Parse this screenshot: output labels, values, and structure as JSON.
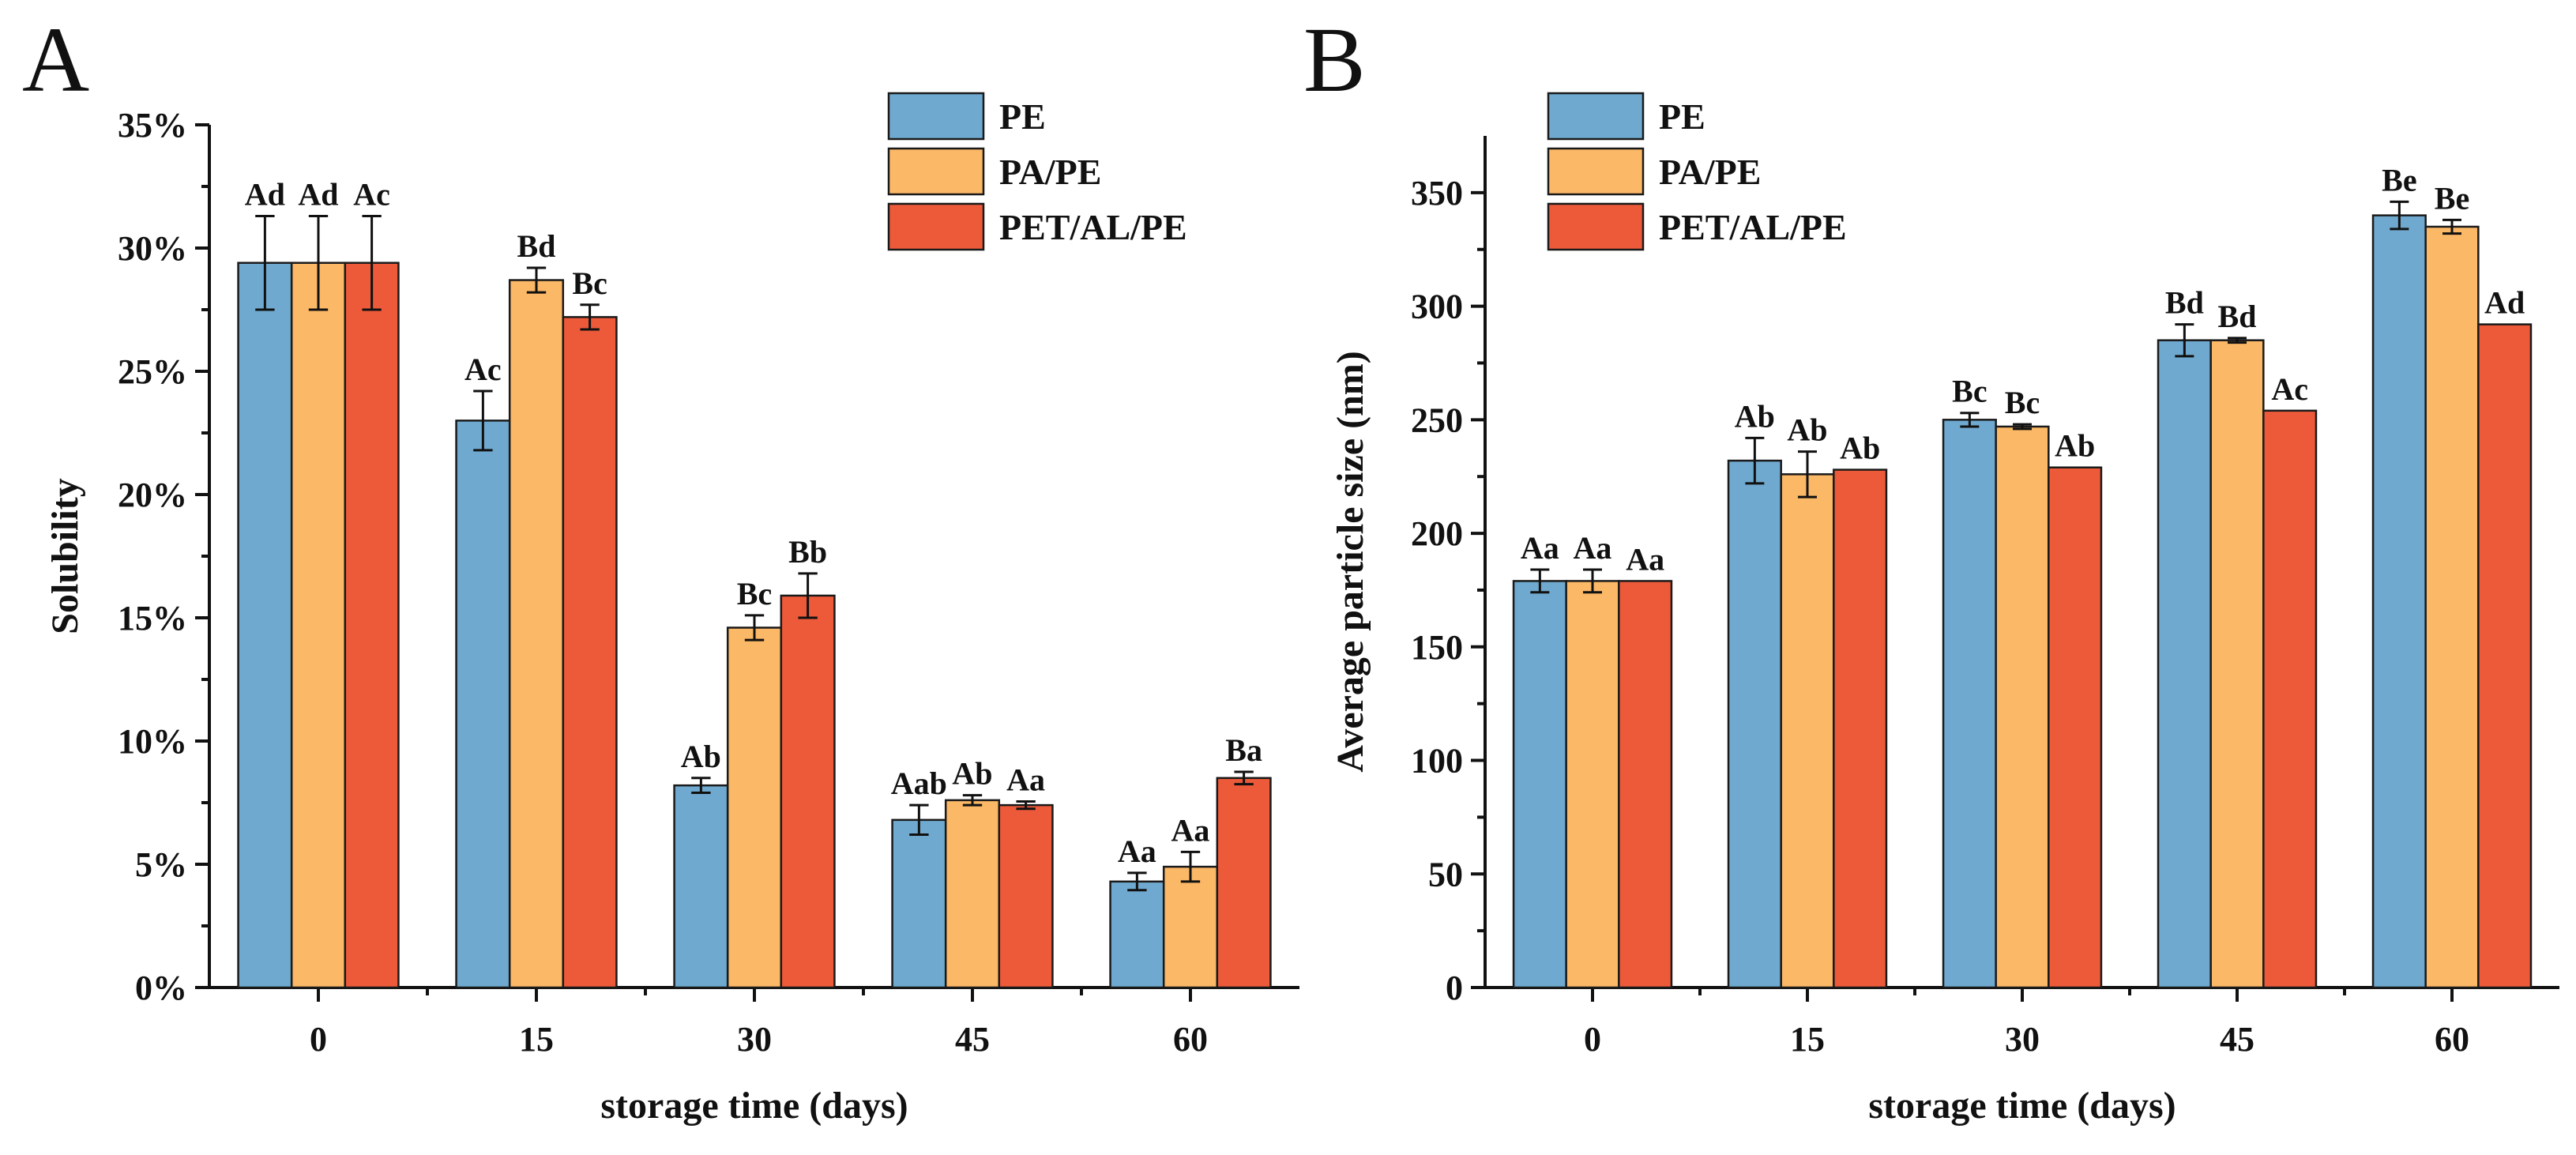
{
  "chart_data": [
    {
      "panel": "A",
      "type": "bar",
      "categories": [
        "0",
        "15",
        "30",
        "45",
        "60"
      ],
      "xlabel": "storage time (days)",
      "ylabel": "Solubility",
      "ylim": [
        0,
        35
      ],
      "yticks": [
        {
          "value": 0,
          "label": "0%"
        },
        {
          "value": 5,
          "label": "5%"
        },
        {
          "value": 10,
          "label": "10%"
        },
        {
          "value": 15,
          "label": "15%"
        },
        {
          "value": 20,
          "label": "20%"
        },
        {
          "value": 25,
          "label": "25%"
        },
        {
          "value": 30,
          "label": "30%"
        },
        {
          "value": 35,
          "label": "35%"
        }
      ],
      "legend_position": "top-right",
      "series": [
        {
          "name": "PE",
          "color": "#6fa9cf",
          "values": [
            29.4,
            23.0,
            8.2,
            6.8,
            4.3
          ],
          "errors": [
            1.9,
            1.2,
            0.3,
            0.6,
            0.35
          ],
          "labels": [
            "Ad",
            "Ac",
            "Ab",
            "Aab",
            "Aa"
          ]
        },
        {
          "name": "PA/PE",
          "color": "#fbb866",
          "values": [
            29.4,
            28.7,
            14.6,
            7.6,
            4.9
          ],
          "errors": [
            1.9,
            0.5,
            0.5,
            0.2,
            0.6
          ],
          "labels": [
            "Ad",
            "Bd",
            "Bc",
            "Ab",
            "Aa"
          ]
        },
        {
          "name": "PET/AL/PE",
          "color": "#ed5a3a",
          "values": [
            29.4,
            27.2,
            15.9,
            7.4,
            8.5
          ],
          "errors": [
            1.9,
            0.5,
            0.9,
            0.15,
            0.25
          ],
          "labels": [
            "Ac",
            "Bc",
            "Bb",
            "Aa",
            "Ba"
          ]
        }
      ]
    },
    {
      "panel": "B",
      "type": "bar",
      "categories": [
        "0",
        "15",
        "30",
        "45",
        "60"
      ],
      "xlabel": "storage time (days)",
      "ylabel": "Average particle size (nm)",
      "ylim": [
        0,
        375
      ],
      "yticks": [
        {
          "value": 0,
          "label": "0"
        },
        {
          "value": 50,
          "label": "50"
        },
        {
          "value": 100,
          "label": "100"
        },
        {
          "value": 150,
          "label": "150"
        },
        {
          "value": 200,
          "label": "200"
        },
        {
          "value": 250,
          "label": "250"
        },
        {
          "value": 300,
          "label": "300"
        },
        {
          "value": 350,
          "label": "350"
        }
      ],
      "legend_position": "top-left",
      "series": [
        {
          "name": "PE",
          "color": "#6fa9cf",
          "values": [
            179,
            232,
            250,
            285,
            340
          ],
          "errors": [
            5,
            10,
            3,
            7,
            6
          ],
          "labels": [
            "Aa",
            "Ab",
            "Bc",
            "Bd",
            "Be"
          ]
        },
        {
          "name": "PA/PE",
          "color": "#fbb866",
          "values": [
            179,
            226,
            247,
            285,
            335
          ],
          "errors": [
            5,
            10,
            1,
            1,
            3
          ],
          "labels": [
            "Aa",
            "Ab",
            "Bc",
            "Bd",
            "Be"
          ]
        },
        {
          "name": "PET/AL/PE",
          "color": "#ed5a3a",
          "values": [
            179,
            228,
            229,
            254,
            292
          ],
          "errors": [
            0,
            0,
            0,
            0,
            0
          ],
          "labels": [
            "Aa",
            "Ab",
            "Ab",
            "Ac",
            "Ad"
          ]
        }
      ]
    }
  ]
}
